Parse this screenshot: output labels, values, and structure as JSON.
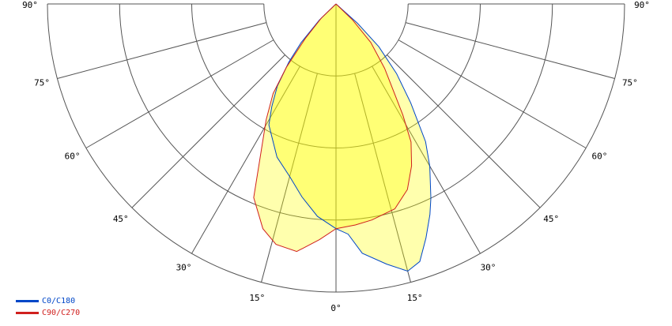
{
  "chart_data": {
    "type": "polar",
    "title": "",
    "angle_unit": "degrees",
    "angle_labels": [
      "90°",
      "75°",
      "60°",
      "45°",
      "30°",
      "15°",
      "0°",
      "15°",
      "30°",
      "45°",
      "60°",
      "75°",
      "90°"
    ],
    "angle_ticks": [
      -90,
      -75,
      -60,
      -45,
      -30,
      -15,
      0,
      15,
      30,
      45,
      60,
      75,
      90
    ],
    "radial_rings": [
      0.25,
      0.5,
      0.75,
      1.0
    ],
    "radial_range": [
      0,
      1
    ],
    "grid": true,
    "legend_position": "bottom-left",
    "series": [
      {
        "name": "C0/C180",
        "color": "#0047c8",
        "points": [
          [
            -50,
            0
          ],
          [
            -46,
            0.08
          ],
          [
            -42,
            0.18
          ],
          [
            -39,
            0.26
          ],
          [
            -35.5,
            0.35
          ],
          [
            -32,
            0.42
          ],
          [
            -29,
            0.48
          ],
          [
            -25,
            0.52
          ],
          [
            -21,
            0.57
          ],
          [
            -15,
            0.62
          ],
          [
            -10,
            0.68
          ],
          [
            -5,
            0.74
          ],
          [
            0,
            0.78
          ],
          [
            3,
            0.8
          ],
          [
            6,
            0.87
          ],
          [
            11,
            0.92
          ],
          [
            15,
            0.96
          ],
          [
            18,
            0.94
          ],
          [
            21,
            0.87
          ],
          [
            24,
            0.8
          ],
          [
            26,
            0.75
          ],
          [
            30,
            0.65
          ],
          [
            33,
            0.57
          ],
          [
            37,
            0.43
          ],
          [
            41,
            0.32
          ],
          [
            45,
            0.21
          ],
          [
            48,
            0.1
          ],
          [
            50,
            0
          ]
        ]
      },
      {
        "name": "C90/C270",
        "color": "#d0201e",
        "points": [
          [
            -50,
            0
          ],
          [
            -46,
            0.07
          ],
          [
            -41.6,
            0.16
          ],
          [
            -38,
            0.28
          ],
          [
            -35,
            0.38
          ],
          [
            -31,
            0.47
          ],
          [
            -27,
            0.57
          ],
          [
            -23,
            0.73
          ],
          [
            -18,
            0.82
          ],
          [
            -14,
            0.86
          ],
          [
            -9,
            0.87
          ],
          [
            -4,
            0.82
          ],
          [
            0,
            0.78
          ],
          [
            5,
            0.77
          ],
          [
            9.4,
            0.76
          ],
          [
            16,
            0.74
          ],
          [
            21,
            0.69
          ],
          [
            25,
            0.62
          ],
          [
            28.5,
            0.545
          ],
          [
            31,
            0.45
          ],
          [
            33,
            0.375
          ],
          [
            37,
            0.28
          ],
          [
            42,
            0.18
          ],
          [
            46,
            0.08
          ],
          [
            50,
            0
          ]
        ]
      }
    ],
    "fill_color": "#ffff00"
  }
}
